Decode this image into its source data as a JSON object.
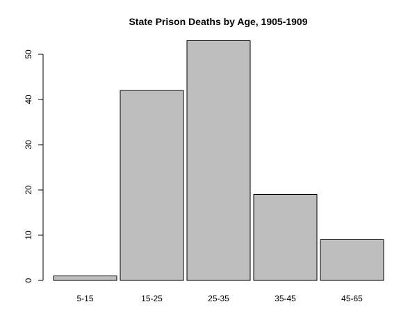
{
  "chart_data": {
    "type": "bar",
    "title": "State Prison Deaths by Age, 1905-1909",
    "xlabel": "",
    "ylabel": "",
    "categories": [
      "5-15",
      "15-25",
      "25-35",
      "35-45",
      "45-65"
    ],
    "values": [
      1,
      42,
      53,
      19,
      9
    ],
    "ylim": [
      0,
      53
    ],
    "yticks": [
      "0",
      "10",
      "20",
      "30",
      "40",
      "50"
    ],
    "bar_color": "#bebebe",
    "bar_border_color": "#000000",
    "grid": false,
    "legend": "none"
  }
}
